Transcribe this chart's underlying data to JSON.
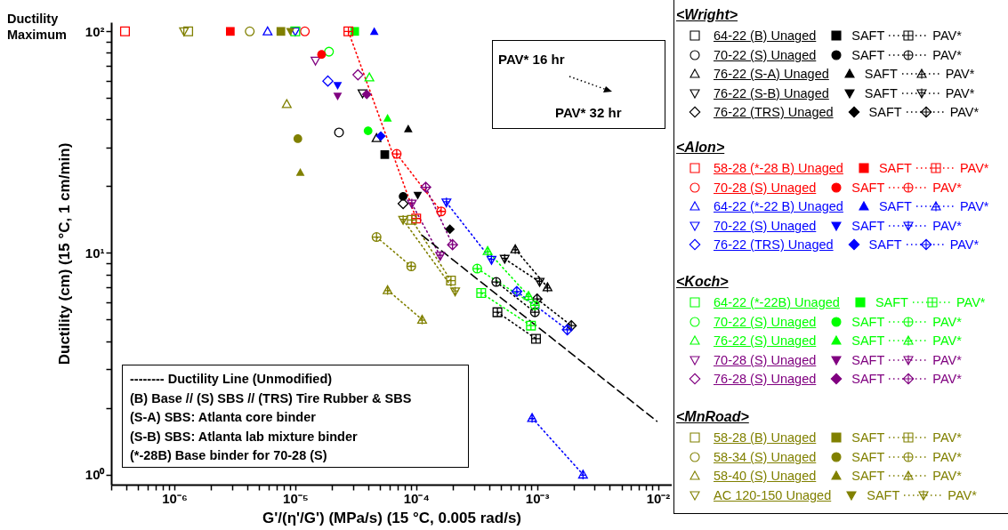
{
  "chart_data": {
    "type": "scatter",
    "xlabel": "G'/(η'/G') (MPa/s) (15 °C, 0.005 rad/s)",
    "ylabel": "Ductility (cm) (15 °C, 1 cm/min)",
    "log": "xy",
    "legend": "right",
    "grid": false,
    "xlim": [
      3e-07,
      0.013
    ],
    "ylim": [
      0.9,
      110
    ],
    "xticks": [
      {
        "value": 3e-07,
        "label": null
      },
      {
        "value": 4e-07,
        "label": null
      },
      {
        "value": 5e-07,
        "label": null
      },
      {
        "value": 6e-07,
        "label": null
      },
      {
        "value": 7e-07,
        "label": null
      },
      {
        "value": 8e-07,
        "label": null
      },
      {
        "value": 9e-07,
        "label": null
      },
      {
        "value": 1e-06,
        "label": "10⁻⁶"
      },
      {
        "value": 2e-06,
        "label": null
      },
      {
        "value": 3e-06,
        "label": null
      },
      {
        "value": 4e-06,
        "label": null
      },
      {
        "value": 5e-06,
        "label": null
      },
      {
        "value": 6e-06,
        "label": null
      },
      {
        "value": 7e-06,
        "label": null
      },
      {
        "value": 8e-06,
        "label": null
      },
      {
        "value": 9e-06,
        "label": null
      },
      {
        "value": 1e-05,
        "label": "10⁻⁵"
      },
      {
        "value": 2e-05,
        "label": null
      },
      {
        "value": 3e-05,
        "label": null
      },
      {
        "value": 4e-05,
        "label": null
      },
      {
        "value": 5e-05,
        "label": null
      },
      {
        "value": 6e-05,
        "label": null
      },
      {
        "value": 7e-05,
        "label": null
      },
      {
        "value": 8e-05,
        "label": null
      },
      {
        "value": 9e-05,
        "label": null
      },
      {
        "value": 0.0001,
        "label": "10⁻⁴"
      },
      {
        "value": 0.0002,
        "label": null
      },
      {
        "value": 0.0003,
        "label": null
      },
      {
        "value": 0.0004,
        "label": null
      },
      {
        "value": 0.0005,
        "label": null
      },
      {
        "value": 0.0006,
        "label": null
      },
      {
        "value": 0.0007,
        "label": null
      },
      {
        "value": 0.0008,
        "label": null
      },
      {
        "value": 0.0009,
        "label": null
      },
      {
        "value": 0.001,
        "label": "10⁻³"
      },
      {
        "value": 0.002,
        "label": null
      },
      {
        "value": 0.003,
        "label": null
      },
      {
        "value": 0.004,
        "label": null
      },
      {
        "value": 0.005,
        "label": null
      },
      {
        "value": 0.006,
        "label": null
      },
      {
        "value": 0.007,
        "label": null
      },
      {
        "value": 0.008,
        "label": null
      },
      {
        "value": 0.009,
        "label": null
      },
      {
        "value": 0.01,
        "label": "10⁻²"
      }
    ],
    "yticks": [
      {
        "value": 1,
        "label": "10⁰"
      },
      {
        "value": 2,
        "label": null
      },
      {
        "value": 3,
        "label": null
      },
      {
        "value": 4,
        "label": null
      },
      {
        "value": 5,
        "label": null
      },
      {
        "value": 6,
        "label": null
      },
      {
        "value": 7,
        "label": null
      },
      {
        "value": 8,
        "label": null
      },
      {
        "value": 9,
        "label": null
      },
      {
        "value": 10,
        "label": "10¹"
      },
      {
        "value": 20,
        "label": null
      },
      {
        "value": 30,
        "label": null
      },
      {
        "value": 40,
        "label": null
      },
      {
        "value": 50,
        "label": null
      },
      {
        "value": 60,
        "label": null
      },
      {
        "value": 70,
        "label": null
      },
      {
        "value": 80,
        "label": null
      },
      {
        "value": 90,
        "label": null
      },
      {
        "value": 100,
        "label": "10²"
      }
    ],
    "annotations": [
      "Ductility Maximum",
      "PAV* 16 hr",
      "PAV* 32 hr",
      "-------- Ductility Line (Unmodified)",
      "(B) Base // (S) SBS // (TRS) Tire Rubber & SBS",
      "(S-A) SBS: Atlanta core binder",
      "(S-B) SBS: Atlanta lab mixture binder",
      "(*-28B) Base binder for 70-28 (S)",
      "<Wright>",
      "<Alon>",
      "<Koch>",
      "<MnRoad>"
    ],
    "series": [
      {
        "type": "scatter",
        "name": "64-22 (B) Unaged",
        "color": "#000000",
        "marker": "square",
        "x": [
          null
        ],
        "values": [
          null
        ]
      },
      {
        "type": "scatter",
        "name": "SAFT",
        "color": "#000000",
        "marker": "square",
        "x": [
          5.5e-05
        ],
        "values": [
          27.8
        ]
      },
      {
        "type": "line",
        "name": "PAV*",
        "color": "#000000",
        "marker": "cross",
        "line_style": "dotted",
        "x": [
          0.00047,
          0.00098
        ],
        "values": [
          5.4,
          4.1
        ]
      },
      {
        "type": "scatter",
        "name": "70-22 (S) Unaged",
        "color": "#000000",
        "marker": "circle",
        "x": [
          2.3e-05
        ],
        "values": [
          35
        ]
      },
      {
        "type": "scatter",
        "name": "SAFT",
        "color": "#000000",
        "marker": "circle",
        "x": [
          7.8e-05
        ],
        "values": [
          18.0
        ]
      },
      {
        "type": "line",
        "name": "PAV*",
        "color": "#000000",
        "marker": "cross",
        "line_style": "dotted",
        "x": [
          0.00046,
          0.00096
        ],
        "values": [
          7.4,
          5.4
        ]
      },
      {
        "type": "scatter",
        "name": "76-22 (S-A) Unaged",
        "color": "#000000",
        "marker": "triangle",
        "x": [
          4.7e-05
        ],
        "values": [
          33
        ]
      },
      {
        "type": "scatter",
        "name": "SAFT",
        "color": "#000000",
        "marker": "triangle",
        "x": [
          8.6e-05
        ],
        "values": [
          36.3
        ]
      },
      {
        "type": "line",
        "name": "PAV*",
        "color": "#000000",
        "marker": "cross",
        "line_style": "dotted",
        "x": [
          0.00066,
          0.00122
        ],
        "values": [
          10.4,
          7.0
        ]
      },
      {
        "type": "scatter",
        "name": "76-22 (S-B) Unaged",
        "color": "#000000",
        "marker": "triangle-down",
        "x": [
          3.6e-05
        ],
        "values": [
          52.5
        ]
      },
      {
        "type": "scatter",
        "name": "SAFT",
        "color": "#000000",
        "marker": "triangle-down",
        "x": [
          0.000103
        ],
        "values": [
          18.2
        ]
      },
      {
        "type": "line",
        "name": "PAV*",
        "color": "#000000",
        "marker": "cross",
        "line_style": "dotted",
        "x": [
          0.00054,
          0.00105
        ],
        "values": [
          9.4,
          7.4
        ]
      },
      {
        "type": "scatter",
        "name": "76-22 (TRS) Unaged",
        "color": "#000000",
        "marker": "diamond",
        "x": [
          7.8e-05
        ],
        "values": [
          16.7
        ]
      },
      {
        "type": "scatter",
        "name": "SAFT",
        "color": "#000000",
        "marker": "diamond",
        "x": [
          0.00019
        ],
        "values": [
          12.8
        ]
      },
      {
        "type": "line",
        "name": "PAV*",
        "color": "#000000",
        "marker": "cross",
        "line_style": "dotted",
        "x": [
          0.001,
          0.00192
        ],
        "values": [
          6.2,
          4.7
        ]
      },
      {
        "type": "scatter",
        "name": "58-28 (*-28 B) Unaged",
        "color": "#ff0000",
        "marker": "square",
        "x": [
          3.9e-07
        ],
        "values": [
          100
        ]
      },
      {
        "type": "scatter",
        "name": "SAFT",
        "color": "#ff0000",
        "marker": "square",
        "x": [
          2.9e-06
        ],
        "values": [
          100
        ]
      },
      {
        "type": "line",
        "name": "PAV*",
        "color": "#ff0000",
        "marker": "cross",
        "line_style": "dotted",
        "x": [
          2.75e-05,
          0.0001
        ],
        "values": [
          100,
          14.3
        ]
      },
      {
        "type": "scatter",
        "name": "70-28 (S) Unaged",
        "color": "#ff0000",
        "marker": "circle",
        "x": [
          1.2e-05
        ],
        "values": [
          100
        ]
      },
      {
        "type": "scatter",
        "name": "SAFT",
        "color": "#ff0000",
        "marker": "circle",
        "x": [
          1.65e-05
        ],
        "values": [
          78.7
        ]
      },
      {
        "type": "line",
        "name": "PAV*",
        "color": "#ff0000",
        "marker": "cross",
        "line_style": "dotted",
        "x": [
          6.9e-05,
          0.000161
        ],
        "values": [
          28,
          15.4
        ]
      },
      {
        "type": "scatter",
        "name": "64-22 (*-22 B) Unaged",
        "color": "#0000ff",
        "marker": "triangle",
        "x": [
          5.9e-06
        ],
        "values": [
          100
        ]
      },
      {
        "type": "scatter",
        "name": "SAFT",
        "color": "#0000ff",
        "marker": "triangle",
        "x": [
          4.5e-05
        ],
        "values": [
          100
        ]
      },
      {
        "type": "line",
        "name": "PAV*",
        "color": "#0000ff",
        "marker": "cross",
        "line_style": "dotted",
        "x": [
          0.00091,
          0.0024
        ],
        "values": [
          1.8,
          1.0
        ]
      },
      {
        "type": "scatter",
        "name": "70-22 (S) Unaged",
        "color": "#0000ff",
        "marker": "triangle-down",
        "x": [
          1e-05
        ],
        "values": [
          100
        ]
      },
      {
        "type": "scatter",
        "name": "SAFT",
        "color": "#0000ff",
        "marker": "triangle-down",
        "x": [
          2.24e-05
        ],
        "values": [
          57
        ]
      },
      {
        "type": "line",
        "name": "PAV*",
        "color": "#0000ff",
        "marker": "cross",
        "line_style": "dotted",
        "x": [
          0.000178,
          0.00042
        ],
        "values": [
          16.9,
          9.3
        ]
      },
      {
        "type": "scatter",
        "name": "76-22 (TRS) Unaged",
        "color": "#0000ff",
        "marker": "diamond",
        "x": [
          1.86e-05
        ],
        "values": [
          59.7
        ]
      },
      {
        "type": "scatter",
        "name": "SAFT",
        "color": "#0000ff",
        "marker": "diamond",
        "x": [
          5.1e-05
        ],
        "values": [
          33.7
        ]
      },
      {
        "type": "line",
        "name": "PAV*",
        "color": "#0000ff",
        "marker": "cross",
        "line_style": "dotted",
        "x": [
          0.00068,
          0.00178
        ],
        "values": [
          6.7,
          4.5
        ]
      },
      {
        "type": "scatter",
        "name": "64-22 (*-22B) Unaged",
        "color": "#00ff00",
        "marker": "square",
        "x": [
          1e-05
        ],
        "values": [
          100
        ]
      },
      {
        "type": "scatter",
        "name": "SAFT",
        "color": "#00ff00",
        "marker": "square",
        "x": [
          3.1e-05
        ],
        "values": [
          100
        ]
      },
      {
        "type": "line",
        "name": "PAV*",
        "color": "#00ff00",
        "marker": "cross",
        "line_style": "dotted",
        "x": [
          0.000345,
          0.00089
        ],
        "values": [
          6.6,
          4.7
        ]
      },
      {
        "type": "scatter",
        "name": "70-22 (S) Unaged",
        "color": "#00ff00",
        "marker": "circle",
        "x": [
          1.9e-05
        ],
        "values": [
          81
        ]
      },
      {
        "type": "scatter",
        "name": "SAFT",
        "color": "#00ff00",
        "marker": "circle",
        "x": [
          4e-05
        ],
        "values": [
          35.6
        ]
      },
      {
        "type": "line",
        "name": "PAV*",
        "color": "#00ff00",
        "marker": "cross",
        "line_style": "dotted",
        "x": [
          0.00032,
          0.00096
        ],
        "values": [
          8.5,
          5.8
        ]
      },
      {
        "type": "scatter",
        "name": "76-22 (S) Unaged",
        "color": "#00ff00",
        "marker": "triangle",
        "x": [
          4.1e-05
        ],
        "values": [
          62
        ]
      },
      {
        "type": "scatter",
        "name": "SAFT",
        "color": "#00ff00",
        "marker": "triangle",
        "x": [
          5.8e-05
        ],
        "values": [
          40.6
        ]
      },
      {
        "type": "line",
        "name": "PAV*",
        "color": "#00ff00",
        "marker": "cross",
        "line_style": "dotted",
        "x": [
          0.00039,
          0.00085
        ],
        "values": [
          10.2,
          6.4
        ]
      },
      {
        "type": "scatter",
        "name": "70-28 (S) Unaged",
        "color": "#800080",
        "marker": "triangle-down",
        "x": [
          1.47e-05
        ],
        "values": [
          73.8
        ]
      },
      {
        "type": "scatter",
        "name": "SAFT",
        "color": "#800080",
        "marker": "triangle-down",
        "x": [
          2.24e-05
        ],
        "values": [
          51
        ]
      },
      {
        "type": "line",
        "name": "PAV*",
        "color": "#800080",
        "marker": "cross",
        "line_style": "dotted",
        "x": [
          9.2e-05,
          0.000158
        ],
        "values": [
          16.7,
          9.7
        ]
      },
      {
        "type": "scatter",
        "name": "76-28 (S) Unaged",
        "color": "#800080",
        "marker": "diamond",
        "x": [
          3.3e-05
        ],
        "values": [
          63.7
        ]
      },
      {
        "type": "scatter",
        "name": "SAFT",
        "color": "#800080",
        "marker": "diamond",
        "x": [
          3.9e-05
        ],
        "values": [
          52
        ]
      },
      {
        "type": "line",
        "name": "PAV*",
        "color": "#800080",
        "marker": "cross",
        "line_style": "dotted",
        "x": [
          0.00012,
          0.0002
        ],
        "values": [
          19.8,
          10.9
        ]
      },
      {
        "type": "scatter",
        "name": "58-28 (B) Unaged",
        "color": "#808000",
        "marker": "square",
        "x": [
          1.3e-06
        ],
        "values": [
          100
        ]
      },
      {
        "type": "scatter",
        "name": "SAFT",
        "color": "#808000",
        "marker": "square",
        "x": [
          7.6e-06
        ],
        "values": [
          100
        ]
      },
      {
        "type": "line",
        "name": "PAV*",
        "color": "#808000",
        "marker": "cross",
        "line_style": "dotted",
        "x": [
          9.2e-05,
          0.000194
        ],
        "values": [
          14.1,
          7.5
        ]
      },
      {
        "type": "scatter",
        "name": "58-34 (S) Unaged",
        "color": "#808000",
        "marker": "circle",
        "x": [
          4.2e-06
        ],
        "values": [
          100
        ]
      },
      {
        "type": "scatter",
        "name": "SAFT",
        "color": "#808000",
        "marker": "circle",
        "x": [
          1.05e-05
        ],
        "values": [
          32.8
        ]
      },
      {
        "type": "line",
        "name": "PAV*",
        "color": "#808000",
        "marker": "cross",
        "line_style": "dotted",
        "x": [
          4.7e-05,
          9.1e-05
        ],
        "values": [
          11.8,
          8.7
        ]
      },
      {
        "type": "scatter",
        "name": "58-40 (S) Unaged",
        "color": "#808000",
        "marker": "triangle",
        "x": [
          8.5e-06
        ],
        "values": [
          47
        ]
      },
      {
        "type": "scatter",
        "name": "SAFT",
        "color": "#808000",
        "marker": "triangle",
        "x": [
          1.1e-05
        ],
        "values": [
          23.1
        ]
      },
      {
        "type": "line",
        "name": "PAV*",
        "color": "#808000",
        "marker": "cross",
        "line_style": "dotted",
        "x": [
          5.8e-05,
          0.000112
        ],
        "values": [
          6.8,
          5.0
        ]
      },
      {
        "type": "scatter",
        "name": "AC 120-150 Unaged",
        "color": "#808000",
        "marker": "triangle-down",
        "x": [
          1.2e-06
        ],
        "values": [
          100
        ]
      },
      {
        "type": "scatter",
        "name": "SAFT",
        "color": "#808000",
        "marker": "triangle-down",
        "x": [
          9.1e-06
        ],
        "values": [
          100
        ]
      },
      {
        "type": "line",
        "name": "PAV*",
        "color": "#808000",
        "marker": "cross",
        "line_style": "dotted",
        "x": [
          7.8e-05,
          0.00021
        ],
        "values": [
          14.1,
          6.7
        ]
      },
      {
        "type": "line",
        "color": "#000000",
        "marker": "none",
        "line_style": "dashed",
        "x": [
          0.000112,
          0.0098
        ],
        "values": [
          12.0,
          1.74
        ]
      }
    ]
  }
}
